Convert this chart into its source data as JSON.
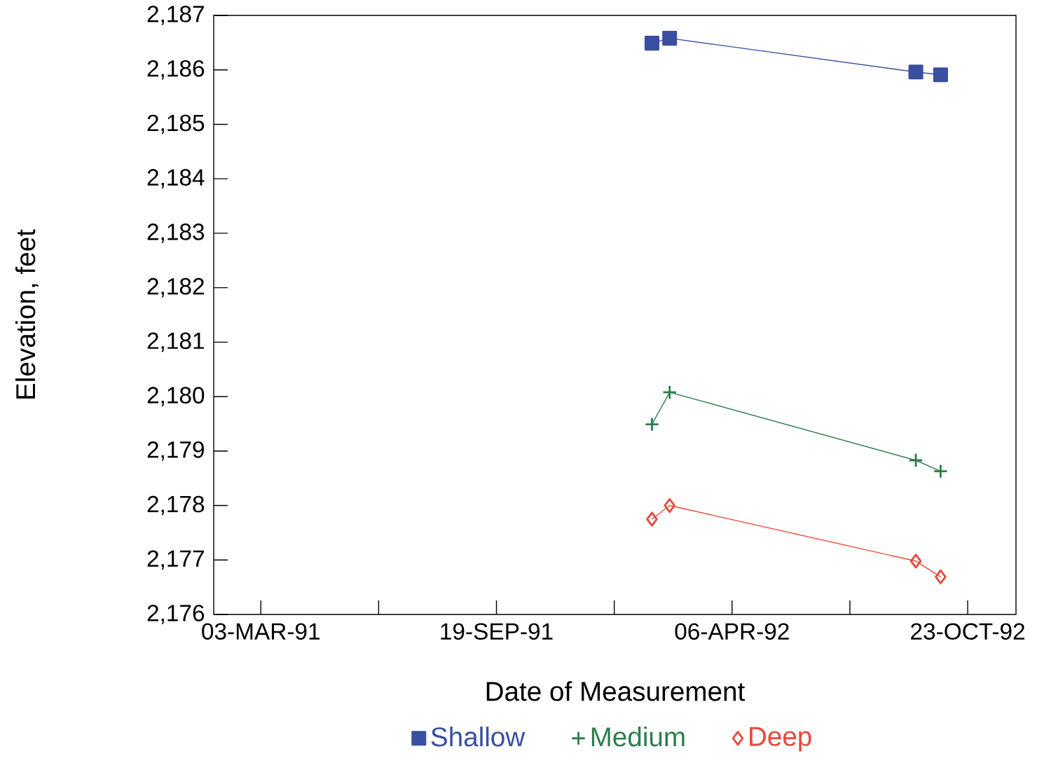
{
  "chart_data": {
    "type": "line",
    "xlabel": "Date of Measurement",
    "ylabel": "Elevation, feet",
    "x": [
      "1992-01-29",
      "1992-02-13",
      "1992-09-09",
      "1992-09-30"
    ],
    "series": [
      {
        "name": "Shallow",
        "color": "#3a4fa0",
        "marker": "square",
        "values": [
          2186.49,
          2186.58,
          2185.96,
          2185.91
        ]
      },
      {
        "name": "Medium",
        "color": "#2e7d4f",
        "marker": "cross",
        "values": [
          2179.49,
          2180.08,
          2178.83,
          2178.63
        ]
      },
      {
        "name": "Deep",
        "color": "#e8483a",
        "marker": "diamond",
        "values": [
          2177.75,
          2178.0,
          2176.98,
          2176.69
        ]
      }
    ],
    "xlim": [
      "1991-01-22",
      "1992-12-03"
    ],
    "xticks": [
      {
        "value": "1991-03-03",
        "label": "03-MAR-91"
      },
      {
        "value": "1991-09-19",
        "label": "19-SEP-91"
      },
      {
        "value": "1992-04-06",
        "label": "06-APR-92"
      },
      {
        "value": "1992-10-23",
        "label": "23-OCT-92"
      }
    ],
    "ylim": [
      2176,
      2187
    ],
    "yticks": [
      {
        "value": 2176,
        "label": "2,176"
      },
      {
        "value": 2177,
        "label": "2,177"
      },
      {
        "value": 2178,
        "label": "2,178"
      },
      {
        "value": 2179,
        "label": "2,179"
      },
      {
        "value": 2180,
        "label": "2,180"
      },
      {
        "value": 2181,
        "label": "2,181"
      },
      {
        "value": 2182,
        "label": "2,182"
      },
      {
        "value": 2183,
        "label": "2,183"
      },
      {
        "value": 2184,
        "label": "2,184"
      },
      {
        "value": 2185,
        "label": "2,185"
      },
      {
        "value": 2186,
        "label": "2,186"
      },
      {
        "value": 2187,
        "label": "2,187"
      }
    ],
    "grid": false,
    "legend": "bottom"
  }
}
